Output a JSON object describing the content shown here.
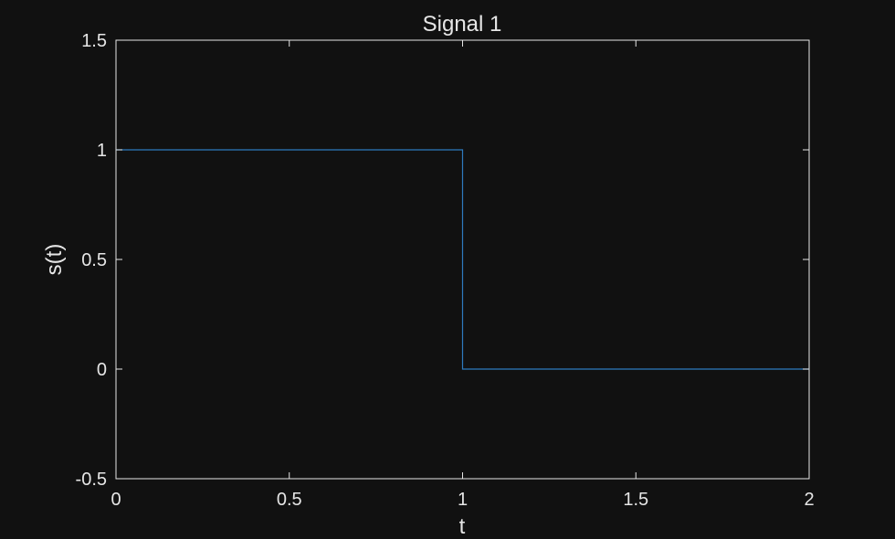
{
  "chart_data": {
    "type": "line",
    "title": "Signal 1",
    "xlabel": "t",
    "ylabel": "s(t)",
    "xlim": [
      0,
      2
    ],
    "ylim": [
      -0.5,
      1.5
    ],
    "x_ticks": [
      0,
      0.5,
      1,
      1.5,
      2
    ],
    "x_tick_labels": [
      "0",
      "0.5",
      "1",
      "1.5",
      "2"
    ],
    "y_ticks": [
      -0.5,
      0,
      0.5,
      1,
      1.5
    ],
    "y_tick_labels": [
      "-0.5",
      "0",
      "0.5",
      "1",
      "1.5"
    ],
    "grid": false,
    "background_color": "#111111",
    "axis_color": "#e6e6e6",
    "series": [
      {
        "color": "#2e7bbf",
        "x": [
          0,
          1,
          1,
          2
        ],
        "y": [
          1,
          1,
          0,
          0
        ]
      }
    ]
  }
}
